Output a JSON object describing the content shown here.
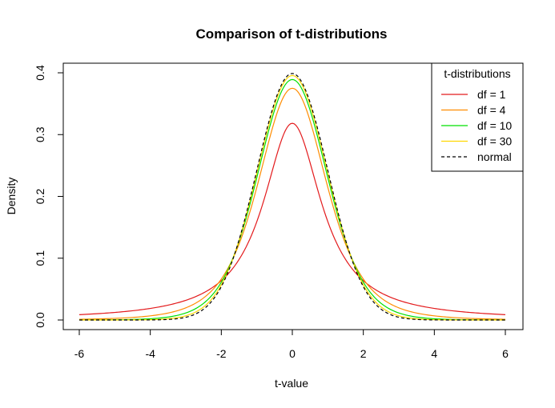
{
  "chart_data": {
    "type": "line",
    "title": "Comparison of t-distributions",
    "xlabel": "t-value",
    "ylabel": "Density",
    "xlim": [
      -6,
      6
    ],
    "ylim": [
      0,
      0.4
    ],
    "xticks": [
      "-6",
      "-4",
      "-2",
      "0",
      "2",
      "4",
      "6"
    ],
    "yticks": [
      "0.0",
      "0.1",
      "0.2",
      "0.3",
      "0.4"
    ],
    "legend": {
      "title": "t-distributions",
      "position": "top-right"
    },
    "series": [
      {
        "name": "df = 1",
        "df": 1,
        "color": "#e31a1c",
        "dash": "solid"
      },
      {
        "name": "df = 4",
        "df": 4,
        "color": "#ff8c00",
        "dash": "solid"
      },
      {
        "name": "df = 10",
        "df": 10,
        "color": "#00e000",
        "dash": "solid"
      },
      {
        "name": "df = 30",
        "df": 30,
        "color": "#ffd700",
        "dash": "solid"
      },
      {
        "name": "normal",
        "df": null,
        "color": "#000000",
        "dash": "dashed"
      }
    ]
  }
}
